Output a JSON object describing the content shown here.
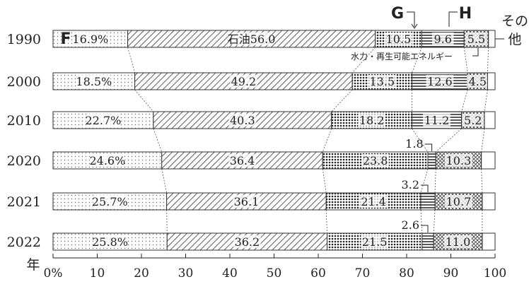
{
  "chart_data": {
    "type": "bar",
    "orientation": "horizontal",
    "stacked": true,
    "categories": [
      "1990",
      "2000",
      "2010",
      "2020",
      "2021",
      "2022"
    ],
    "series": [
      {
        "name": "F",
        "values": [
          16.9,
          18.5,
          22.7,
          24.6,
          25.7,
          25.8
        ],
        "labels": [
          "16.9%",
          "18.5%",
          "22.7%",
          "24.6%",
          "25.7%",
          "25.8%"
        ],
        "pattern": "dots-light"
      },
      {
        "name": "石油",
        "values": [
          56.0,
          49.2,
          40.3,
          36.4,
          36.1,
          36.2
        ],
        "labels": [
          "石油56.0",
          "49.2",
          "40.3",
          "36.4",
          "36.1",
          "36.2"
        ],
        "pattern": "hatch"
      },
      {
        "name": "G",
        "values": [
          10.5,
          13.5,
          18.2,
          23.8,
          21.4,
          21.5
        ],
        "labels": [
          "10.5",
          "13.5",
          "18.2",
          "23.8",
          "21.4",
          "21.5"
        ],
        "pattern": "dots-dense"
      },
      {
        "name": "水力・再生可能エネルギー",
        "values": [
          9.6,
          12.6,
          11.2,
          1.8,
          3.2,
          2.6
        ],
        "labels": [
          "9.6",
          "12.6",
          "11.2",
          "1.8",
          "3.2",
          "2.6"
        ],
        "pattern": "lines"
      },
      {
        "name": "H",
        "values": [
          5.5,
          4.5,
          5.2,
          10.3,
          10.7,
          11.0
        ],
        "labels": [
          "5.5",
          "4.5",
          "5.2",
          "10.3",
          "10.7",
          "11.0"
        ],
        "pattern": "cross"
      },
      {
        "name": "その他",
        "values": [
          1.5,
          1.7,
          2.4,
          3.1,
          2.9,
          2.9
        ],
        "labels": [],
        "pattern": "blank"
      }
    ],
    "xlim": [
      0,
      100
    ],
    "xticks": [
      "0%",
      "10",
      "20",
      "30",
      "40",
      "50",
      "60",
      "70",
      "80",
      "90",
      "100"
    ],
    "ylabel": "年",
    "annotations": {
      "g_label": "G",
      "h_label": "H",
      "renewable_label": "水力・再生可能エネルギー",
      "other_label": "その他"
    },
    "grid": false
  }
}
